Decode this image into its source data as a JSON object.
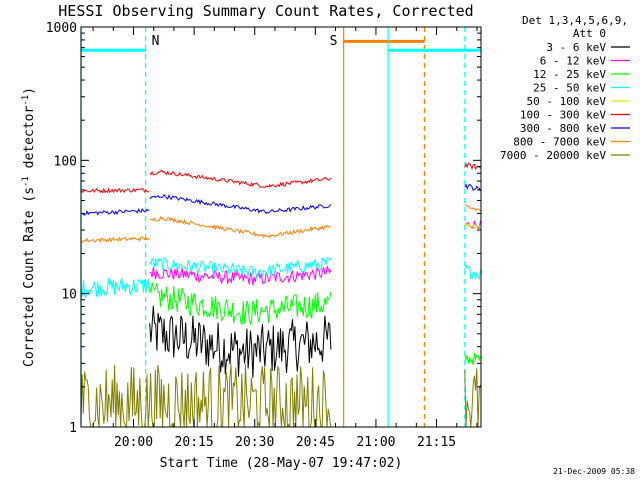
{
  "chart_data": {
    "type": "line",
    "title": "HESSI Observing Summary Count Rates, Corrected",
    "xlabel": "Start Time (28-May-07 19:47:02)",
    "ylabel": "Corrected Count Rate (s",
    "ylabel_sup1": "-1",
    "ylabel_mid": " detector",
    "ylabel_sup2": "-1",
    "ylabel_end": ")",
    "y_scale": "log",
    "ylim": [
      1,
      1000
    ],
    "y_ticks": [
      1,
      10,
      100,
      1000
    ],
    "y_tick_labels": [
      "1",
      "10",
      "100",
      "1000"
    ],
    "x_range_minutes": [
      "19:47",
      "21:26"
    ],
    "x_ticks": [
      "20:00",
      "20:15",
      "20:30",
      "20:45",
      "21:00",
      "21:15"
    ],
    "grid": false,
    "legend_position": "top-right, outside plot",
    "legend_header": [
      "Det 1,3,4,5,6,9,",
      "Att 0"
    ],
    "series": [
      {
        "name": "3 - 6 keV",
        "color": "#000000",
        "segments": [
          {
            "t": [
              "20:04",
              "20:28",
              "20:49"
            ],
            "v": [
              5.2,
              3.6,
              4.5
            ],
            "noise": 0.2
          }
        ]
      },
      {
        "name": "6 - 12 keV",
        "color": "#ff00ff",
        "segments": [
          {
            "t": [
              "20:04",
              "20:30",
              "20:49"
            ],
            "v": [
              14.5,
              12.8,
              14.5
            ],
            "noise": 0.05
          },
          {
            "t": [
              "21:22",
              "21:26"
            ],
            "v": [
              33,
              33
            ],
            "noise": 0.03
          }
        ]
      },
      {
        "name": "12 - 25 keV",
        "color": "#00ff00",
        "segments": [
          {
            "t": [
              "20:04",
              "20:28",
              "20:49"
            ],
            "v": [
              9.8,
              7.2,
              8.5
            ],
            "noise": 0.1
          },
          {
            "t": [
              "21:22",
              "21:26"
            ],
            "v": [
              3.3,
              3.2
            ],
            "noise": 0.05
          }
        ]
      },
      {
        "name": "25 - 50 keV",
        "color": "#00ffff",
        "segments": [
          {
            "t": [
              "19:47",
              "20:04"
            ],
            "v": [
              11,
              11.5
            ],
            "noise": 0.07
          },
          {
            "t": [
              "20:04",
              "20:30",
              "20:49"
            ],
            "v": [
              17,
              14.5,
              17
            ],
            "noise": 0.05
          },
          {
            "t": [
              "21:22",
              "21:26"
            ],
            "v": [
              15,
              14
            ],
            "noise": 0.05
          }
        ]
      },
      {
        "name": "50 - 100 keV",
        "color": "#e6e600",
        "segments": [
          {
            "t": [
              "21:22",
              "21:26"
            ],
            "v": [
              33,
              32
            ],
            "noise": 0.02
          }
        ]
      },
      {
        "name": "100 - 300 keV",
        "color": "#ff0000",
        "segments": [
          {
            "t": [
              "19:47",
              "20:04"
            ],
            "v": [
              59,
              60
            ],
            "noise": 0.015
          },
          {
            "t": [
              "20:04",
              "20:07",
              "20:33",
              "20:49"
            ],
            "v": [
              80,
              82,
              64,
              73
            ],
            "noise": 0.015
          },
          {
            "t": [
              "21:22",
              "21:26"
            ],
            "v": [
              92,
              88
            ],
            "noise": 0.02
          }
        ]
      },
      {
        "name": "300 - 800 keV",
        "color": "#0000ff",
        "segments": [
          {
            "t": [
              "19:47",
              "20:04"
            ],
            "v": [
              40,
              42
            ],
            "noise": 0.015
          },
          {
            "t": [
              "20:04",
              "20:07",
              "20:33",
              "20:49"
            ],
            "v": [
              52,
              54,
              41,
              46
            ],
            "noise": 0.015
          },
          {
            "t": [
              "21:22",
              "21:26"
            ],
            "v": [
              65,
              60
            ],
            "noise": 0.02
          }
        ]
      },
      {
        "name": "800 - 7000 keV",
        "color": "#ff8000",
        "segments": [
          {
            "t": [
              "19:47",
              "20:04"
            ],
            "v": [
              25,
              26
            ],
            "noise": 0.015
          },
          {
            "t": [
              "20:04",
              "20:07",
              "20:33",
              "20:49"
            ],
            "v": [
              35,
              37,
              27,
              32
            ],
            "noise": 0.015
          },
          {
            "t": [
              "20:52",
              "21:12"
            ],
            "v": [
              780,
              780
            ],
            "noise": 0
          },
          {
            "t": [
              "21:22",
              "21:26"
            ],
            "v": [
              45,
              42
            ],
            "noise": 0.02
          }
        ]
      },
      {
        "name": "7000 - 20000 keV",
        "color": "#808000",
        "segments": [
          {
            "t": [
              "19:47",
              "20:49"
            ],
            "v": [
              1.5,
              1.5
            ],
            "noise": 0.3
          },
          {
            "t": [
              "21:22",
              "21:26"
            ],
            "v": [
              1.6,
              1.5
            ],
            "noise": 0.3
          }
        ]
      }
    ],
    "annotations": [
      {
        "label": "N",
        "color": "#00ffff",
        "bar_from": "19:47",
        "bar_to": "20:03",
        "bar_value": 670,
        "solid_line_at": "19:47",
        "dashed_line_at": "20:03"
      },
      {
        "label": "S",
        "color": "#ff8000",
        "bar_from": "20:52",
        "bar_to": "21:12",
        "bar_value": 780,
        "solid_line_at": "20:52",
        "dashed_line_at": "21:12"
      },
      {
        "label": "",
        "color": "#00ffff",
        "bar_from": "21:03",
        "bar_to": "21:26",
        "bar_value": 670,
        "solid_line_at": "21:03",
        "dashed_line_at": "21:22"
      }
    ]
  },
  "footer_stamp": "21-Dec-2009 05:38"
}
